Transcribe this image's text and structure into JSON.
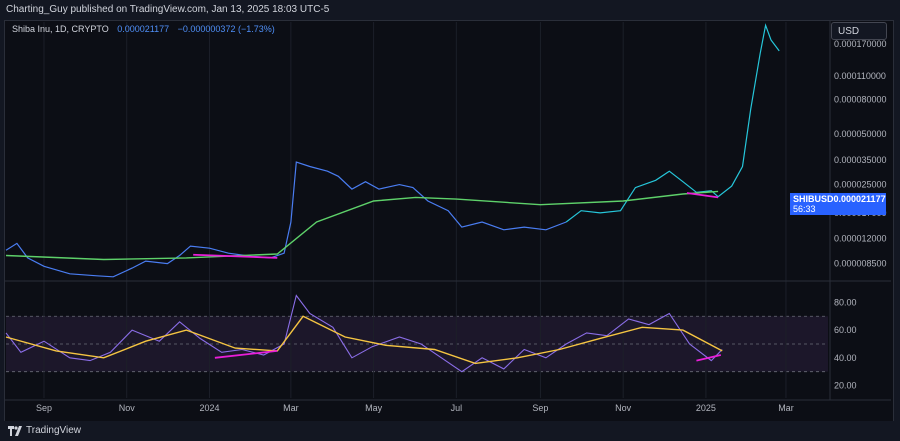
{
  "header": {
    "publisher_line": "Charting_Guy published on TradingView.com, Jan 13, 2025 18:03 UTC-5"
  },
  "symbol": {
    "name": "Shiba Inu, 1D, CRYPTO",
    "price": "0.000021177",
    "change": "−0.000000372 (−1.73%)"
  },
  "currency_button": "USD",
  "price_tag": {
    "ticker": "SHIBUSD",
    "price": "0.000021177",
    "countdown": "56:33"
  },
  "footer": {
    "brand": "TradingView"
  },
  "colors": {
    "price_line": "#4a7df2",
    "price_line_recent": "#26c6da",
    "moving_average": "#5ed16a",
    "rsi_line": "#8b6ee8",
    "rsi_ma": "#f5c542",
    "divergence": "#e91ed8",
    "rsi_band": "#2a1f3d"
  },
  "chart_data": [
    {
      "type": "line",
      "title": "Shiba Inu, 1D, CRYPTO",
      "scale": "log",
      "y_tick_labels": [
        "0.000170000",
        "0.000110000",
        "0.000080000",
        "0.000050000",
        "0.000035000",
        "0.000025000",
        "0.000017000",
        "0.000012000",
        "0.000008500"
      ],
      "y_ticks": [
        0.00017,
        0.00011,
        8e-05,
        5e-05,
        3.5e-05,
        2.5e-05,
        1.7e-05,
        1.2e-05,
        8.5e-06
      ],
      "ylim": [
        6.8e-06,
        0.00023
      ],
      "x_tick_labels": [
        "Sep",
        "Nov",
        "2024",
        "Mar",
        "May",
        "Jul",
        "Sep",
        "Nov",
        "2025",
        "Mar"
      ],
      "x_ticks": [
        "2023-09-01",
        "2023-11-01",
        "2024-01-01",
        "2024-03-01",
        "2024-05-01",
        "2024-07-01",
        "2024-09-01",
        "2024-11-01",
        "2025-01-01",
        "2025-03-01"
      ],
      "xlim": [
        "2023-08-04",
        "2025-04-01"
      ],
      "series": [
        {
          "points": [
            [
              "2023-08-04",
              1.02e-05
            ],
            [
              "2023-08-12",
              1.12e-05
            ],
            [
              "2023-08-20",
              9.2e-06
            ],
            [
              "2023-09-01",
              8.2e-06
            ],
            [
              "2023-09-20",
              7.4e-06
            ],
            [
              "2023-10-10",
              7.2e-06
            ],
            [
              "2023-10-22",
              7.1e-06
            ],
            [
              "2023-11-05",
              8e-06
            ],
            [
              "2023-11-15",
              8.8e-06
            ],
            [
              "2023-12-01",
              8.5e-06
            ],
            [
              "2023-12-10",
              9.5e-06
            ],
            [
              "2023-12-18",
              1.08e-05
            ],
            [
              "2024-01-01",
              1.05e-05
            ],
            [
              "2024-01-15",
              9.8e-06
            ],
            [
              "2024-02-01",
              9.4e-06
            ],
            [
              "2024-02-15",
              9.2e-06
            ],
            [
              "2024-02-25",
              9.8e-06
            ],
            [
              "2024-03-01",
              1.5e-05
            ],
            [
              "2024-03-05",
              3.4e-05
            ],
            [
              "2024-03-15",
              3.2e-05
            ],
            [
              "2024-03-28",
              3e-05
            ],
            [
              "2024-04-05",
              2.8e-05
            ],
            [
              "2024-04-15",
              2.35e-05
            ],
            [
              "2024-04-25",
              2.6e-05
            ],
            [
              "2024-05-05",
              2.35e-05
            ],
            [
              "2024-05-20",
              2.5e-05
            ],
            [
              "2024-05-30",
              2.4e-05
            ],
            [
              "2024-06-10",
              2e-05
            ],
            [
              "2024-06-25",
              1.75e-05
            ],
            [
              "2024-07-05",
              1.4e-05
            ],
            [
              "2024-07-20",
              1.5e-05
            ],
            [
              "2024-08-05",
              1.35e-05
            ],
            [
              "2024-08-20",
              1.4e-05
            ],
            [
              "2024-09-05",
              1.35e-05
            ],
            [
              "2024-09-20",
              1.5e-05
            ]
          ]
        },
        {
          "points": [
            [
              "2024-09-20",
              1.5e-05
            ],
            [
              "2024-10-01",
              1.75e-05
            ],
            [
              "2024-10-15",
              1.7e-05
            ],
            [
              "2024-10-30",
              1.75e-05
            ],
            [
              "2024-11-10",
              2.4e-05
            ],
            [
              "2024-11-25",
              2.65e-05
            ],
            [
              "2024-12-05",
              3e-05
            ],
            [
              "2024-12-15",
              2.6e-05
            ],
            [
              "2024-12-25",
              2.25e-05
            ],
            [
              "2025-01-05",
              2.3e-05
            ],
            [
              "2025-01-10",
              2.12e-05
            ],
            [
              "2025-01-20",
              2.45e-05
            ],
            [
              "2025-01-28",
              3.2e-05
            ],
            [
              "2025-02-03",
              7e-05
            ],
            [
              "2025-02-10",
              0.00015
            ],
            [
              "2025-02-14",
              0.00022
            ],
            [
              "2025-02-18",
              0.00018
            ],
            [
              "2025-02-24",
              0.000155
            ]
          ]
        },
        {
          "points": [
            [
              "2023-08-04",
              9.5e-06
            ],
            [
              "2023-10-15",
              9e-06
            ],
            [
              "2023-12-15",
              9.2e-06
            ],
            [
              "2024-02-20",
              9.7e-06
            ],
            [
              "2024-03-20",
              1.5e-05
            ],
            [
              "2024-05-01",
              2e-05
            ],
            [
              "2024-06-01",
              2.1e-05
            ],
            [
              "2024-07-01",
              2.05e-05
            ],
            [
              "2024-09-01",
              1.9e-05
            ],
            [
              "2024-11-01",
              2e-05
            ],
            [
              "2024-12-15",
              2.2e-05
            ],
            [
              "2025-01-10",
              2.28e-05
            ]
          ]
        },
        {
          "points": [
            [
              "2023-12-20",
              9.6e-06
            ],
            [
              "2024-02-20",
              9.2e-06
            ],
            [
              "2024-12-18",
              2.23e-05
            ],
            [
              "2025-01-10",
              2.1e-05
            ]
          ]
        }
      ]
    },
    {
      "type": "line",
      "y_tick_labels": [
        "80.00",
        "60.00",
        "40.00",
        "20.00"
      ],
      "y_ticks": [
        80,
        60,
        40,
        20
      ],
      "ylim": [
        11,
        94
      ],
      "bands": [
        70,
        50,
        30
      ],
      "series": [
        {
          "points": [
            [
              "2023-08-04",
              58
            ],
            [
              "2023-08-15",
              44
            ],
            [
              "2023-09-01",
              52
            ],
            [
              "2023-09-20",
              40
            ],
            [
              "2023-10-05",
              38
            ],
            [
              "2023-10-20",
              44
            ],
            [
              "2023-11-05",
              60
            ],
            [
              "2023-11-25",
              52
            ],
            [
              "2023-12-10",
              66
            ],
            [
              "2023-12-25",
              54
            ],
            [
              "2024-01-10",
              44
            ],
            [
              "2024-01-25",
              46
            ],
            [
              "2024-02-10",
              42
            ],
            [
              "2024-02-25",
              50
            ],
            [
              "2024-03-05",
              85
            ],
            [
              "2024-03-15",
              72
            ],
            [
              "2024-04-01",
              62
            ],
            [
              "2024-04-15",
              40
            ],
            [
              "2024-04-30",
              48
            ],
            [
              "2024-05-20",
              55
            ],
            [
              "2024-06-05",
              50
            ],
            [
              "2024-06-20",
              40
            ],
            [
              "2024-07-05",
              30
            ],
            [
              "2024-07-20",
              40
            ],
            [
              "2024-08-05",
              32
            ],
            [
              "2024-08-20",
              46
            ],
            [
              "2024-09-05",
              40
            ],
            [
              "2024-09-20",
              50
            ],
            [
              "2024-10-05",
              58
            ],
            [
              "2024-10-20",
              56
            ],
            [
              "2024-11-05",
              68
            ],
            [
              "2024-11-20",
              64
            ],
            [
              "2024-12-05",
              72
            ],
            [
              "2024-12-20",
              50
            ],
            [
              "2025-01-05",
              38
            ],
            [
              "2025-01-13",
              46
            ]
          ]
        },
        {
          "points": [
            [
              "2023-08-04",
              55
            ],
            [
              "2023-09-10",
              45
            ],
            [
              "2023-10-15",
              40
            ],
            [
              "2023-11-15",
              52
            ],
            [
              "2023-12-15",
              60
            ],
            [
              "2024-01-20",
              47
            ],
            [
              "2024-02-20",
              45
            ],
            [
              "2024-03-10",
              70
            ],
            [
              "2024-04-10",
              55
            ],
            [
              "2024-05-10",
              49
            ],
            [
              "2024-06-15",
              46
            ],
            [
              "2024-07-15",
              36
            ],
            [
              "2024-08-15",
              40
            ],
            [
              "2024-09-15",
              46
            ],
            [
              "2024-10-15",
              54
            ],
            [
              "2024-11-15",
              62
            ],
            [
              "2024-12-15",
              60
            ],
            [
              "2025-01-13",
              45
            ]
          ]
        },
        {
          "points": [
            [
              "2024-01-05",
              40
            ],
            [
              "2024-02-20",
              45
            ],
            [
              "2024-12-25",
              38
            ],
            [
              "2025-01-12",
              42
            ]
          ]
        }
      ]
    }
  ]
}
